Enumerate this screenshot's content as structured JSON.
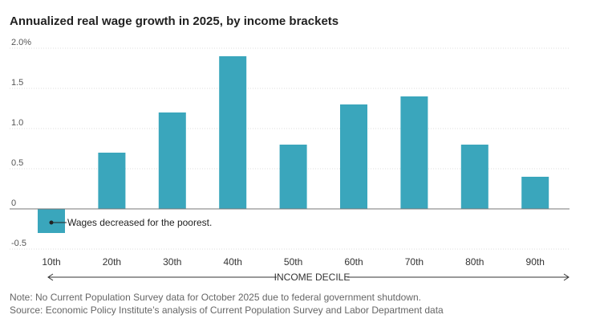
{
  "chart_data": {
    "type": "bar",
    "title": "Annualized real wage growth in 2025, by income brackets",
    "categories": [
      "10th",
      "20th",
      "30th",
      "40th",
      "50th",
      "60th",
      "70th",
      "80th",
      "90th"
    ],
    "values": [
      -0.3,
      0.7,
      1.2,
      1.9,
      0.8,
      1.3,
      1.4,
      0.8,
      0.4
    ],
    "ylim": [
      -0.5,
      2.0
    ],
    "yticks": [
      -0.5,
      0,
      0.5,
      1.0,
      1.5,
      2.0
    ],
    "ytick_labels": [
      "-0.5",
      "0",
      "0.5",
      "1.0",
      "1.5",
      "2.0%"
    ],
    "xlabel": "INCOME DECILE",
    "ylabel": "",
    "grid": true,
    "bar_color": "#3aa6bc",
    "annotation": {
      "category": "10th",
      "text": "Wages decreased for the poorest."
    }
  },
  "footer": {
    "note": "Note: No Current Population Survey data for October 2025 due to federal government shutdown.",
    "source": "Source: Economic Policy Institute’s analysis of Current Population Survey and Labor Department data"
  }
}
